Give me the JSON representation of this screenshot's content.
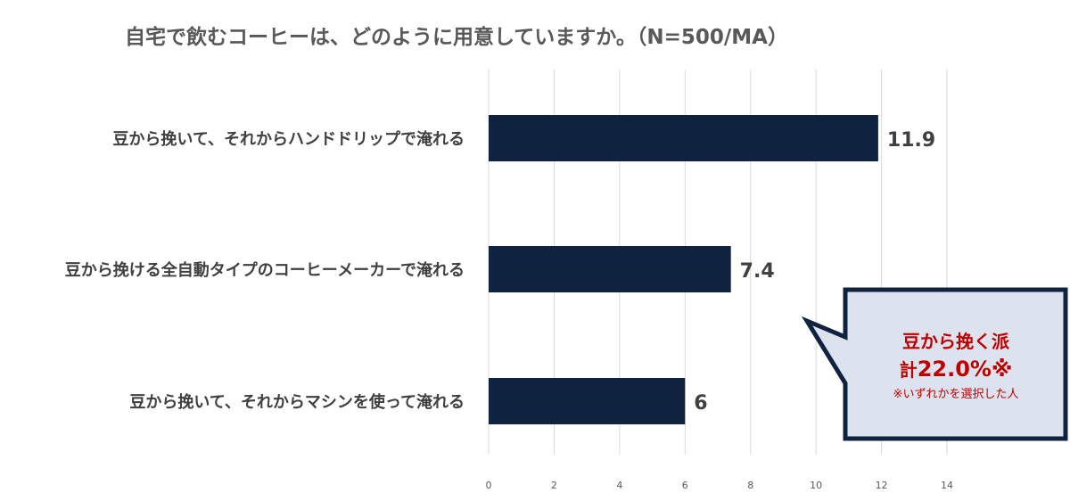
{
  "colors": {
    "bar": "#0f2340",
    "callout_fill": "#dde3ee",
    "callout_border": "#0f2340",
    "accent_text": "#c00000",
    "grid": "#d9d9d9"
  },
  "chart_data": {
    "type": "bar",
    "orientation": "horizontal",
    "title": "自宅で飲むコーヒーは、どのように用意していますか。（N=500/MA）",
    "categories": [
      "豆から挽いて、それからハンドドリップで淹れる",
      "豆から挽ける全自動タイプのコーヒーメーカーで淹れる",
      "豆から挽いて、それからマシンを使って淹れる"
    ],
    "values": [
      11.9,
      7.4,
      6
    ],
    "value_labels": [
      "11.9",
      "7.4",
      "6"
    ],
    "xlim": [
      0,
      14
    ],
    "x_ticks": [
      0,
      2,
      4,
      6,
      8,
      10,
      12,
      14
    ],
    "tick_labels": [
      "0",
      "2",
      "4",
      "6",
      "8",
      "10",
      "12",
      "14"
    ],
    "grid": true,
    "legend": "none"
  },
  "callout": {
    "headline": "豆から挽く派",
    "total_prefix": "計",
    "total_value": "22.0%※",
    "note": "※いずれかを選択した人"
  }
}
